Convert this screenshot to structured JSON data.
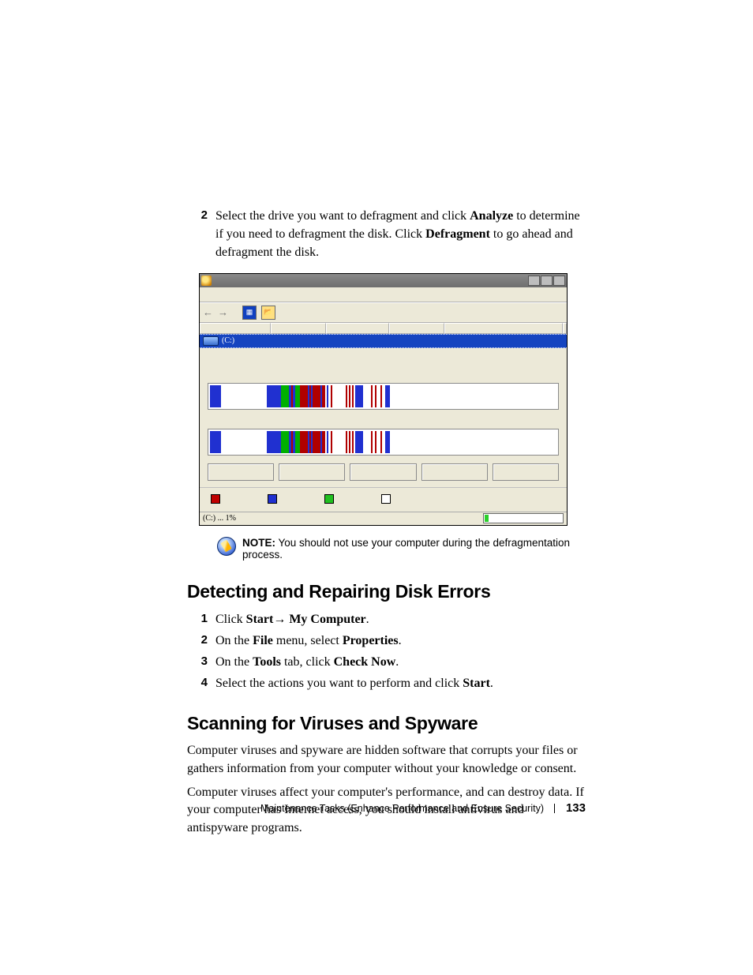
{
  "step2": {
    "num": "2",
    "text_pre": "Select the drive you want to defragment and click ",
    "bold1": "Analyze",
    "text_mid1": " to determine if you need to defragment the disk. Click ",
    "bold2": "Defragment",
    "text_tail": " to go ahead and defragment the disk."
  },
  "window": {
    "drive_label": "(C:)",
    "status_text": "(C:) ... 1%",
    "header_widths": [
      90,
      70,
      80,
      70,
      150
    ],
    "legend": [
      {
        "color": "#c00000"
      },
      {
        "color": "#2030d0"
      },
      {
        "color": "#20c020"
      },
      {
        "color": "#ffffff"
      }
    ],
    "bands": [
      [
        {
          "l": 2,
          "w": 14,
          "c": "#2030d0"
        },
        {
          "l": 74,
          "w": 18,
          "c": "#2030d0"
        },
        {
          "l": 92,
          "w": 10,
          "c": "#00b000"
        },
        {
          "l": 102,
          "w": 3,
          "c": "#2030d0"
        },
        {
          "l": 105,
          "w": 2,
          "c": "#b00000"
        },
        {
          "l": 107,
          "w": 3,
          "c": "#2030d0"
        },
        {
          "l": 110,
          "w": 6,
          "c": "#00b000"
        },
        {
          "l": 116,
          "w": 10,
          "c": "#b00000"
        },
        {
          "l": 126,
          "w": 2,
          "c": "#2030d0"
        },
        {
          "l": 128,
          "w": 2,
          "c": "#b00000"
        },
        {
          "l": 130,
          "w": 2,
          "c": "#2030d0"
        },
        {
          "l": 132,
          "w": 10,
          "c": "#b00000"
        },
        {
          "l": 142,
          "w": 2,
          "c": "#2030d0"
        },
        {
          "l": 144,
          "w": 4,
          "c": "#b00000"
        },
        {
          "l": 150,
          "w": 2,
          "c": "#2030d0"
        },
        {
          "l": 155,
          "w": 2,
          "c": "#b00000"
        },
        {
          "l": 174,
          "w": 2,
          "c": "#b00000"
        },
        {
          "l": 178,
          "w": 2,
          "c": "#b00000"
        },
        {
          "l": 182,
          "w": 2,
          "c": "#b00000"
        },
        {
          "l": 186,
          "w": 10,
          "c": "#2030d0"
        },
        {
          "l": 206,
          "w": 2,
          "c": "#b00000"
        },
        {
          "l": 211,
          "w": 2,
          "c": "#b00000"
        },
        {
          "l": 218,
          "w": 2,
          "c": "#b00000"
        },
        {
          "l": 224,
          "w": 6,
          "c": "#2030d0"
        }
      ],
      [
        {
          "l": 2,
          "w": 14,
          "c": "#2030d0"
        },
        {
          "l": 74,
          "w": 18,
          "c": "#2030d0"
        },
        {
          "l": 92,
          "w": 10,
          "c": "#00b000"
        },
        {
          "l": 102,
          "w": 3,
          "c": "#2030d0"
        },
        {
          "l": 105,
          "w": 2,
          "c": "#b00000"
        },
        {
          "l": 107,
          "w": 3,
          "c": "#2030d0"
        },
        {
          "l": 110,
          "w": 6,
          "c": "#00b000"
        },
        {
          "l": 116,
          "w": 10,
          "c": "#b00000"
        },
        {
          "l": 126,
          "w": 2,
          "c": "#2030d0"
        },
        {
          "l": 128,
          "w": 2,
          "c": "#b00000"
        },
        {
          "l": 130,
          "w": 2,
          "c": "#2030d0"
        },
        {
          "l": 132,
          "w": 10,
          "c": "#b00000"
        },
        {
          "l": 142,
          "w": 2,
          "c": "#2030d0"
        },
        {
          "l": 144,
          "w": 4,
          "c": "#b00000"
        },
        {
          "l": 150,
          "w": 2,
          "c": "#2030d0"
        },
        {
          "l": 155,
          "w": 2,
          "c": "#b00000"
        },
        {
          "l": 174,
          "w": 2,
          "c": "#b00000"
        },
        {
          "l": 178,
          "w": 2,
          "c": "#b00000"
        },
        {
          "l": 182,
          "w": 2,
          "c": "#b00000"
        },
        {
          "l": 186,
          "w": 10,
          "c": "#2030d0"
        },
        {
          "l": 206,
          "w": 2,
          "c": "#b00000"
        },
        {
          "l": 211,
          "w": 2,
          "c": "#b00000"
        },
        {
          "l": 218,
          "w": 2,
          "c": "#b00000"
        },
        {
          "l": 224,
          "w": 6,
          "c": "#2030d0"
        }
      ]
    ]
  },
  "note": {
    "label": "NOTE:",
    "text": " You should not use your computer during the defragmentation process."
  },
  "heading1": "Detecting and Repairing Disk Errors",
  "steps_disk": [
    {
      "num": "1",
      "pre": "Click ",
      "b1": "Start",
      "arrow": "→ ",
      "b2": "My Computer",
      "tail": "."
    },
    {
      "num": "2",
      "pre": "On the ",
      "b1": "File",
      "mid": " menu, select ",
      "b2": "Properties",
      "tail": "."
    },
    {
      "num": "3",
      "pre": "On the ",
      "b1": "Tools",
      "mid": " tab, click ",
      "b2": "Check Now",
      "tail": "."
    },
    {
      "num": "4",
      "pre": "Select the actions you want to perform and click ",
      "b1": "Start",
      "tail": "."
    }
  ],
  "heading2": "Scanning for Viruses and Spyware",
  "para1": "Computer viruses and spyware are hidden software that corrupts your files or gathers information from your computer without your knowledge or consent.",
  "para2": "Computer viruses affect your computer's performance, and can destroy data. If your computer has Internet access, you should install antivirus and antispyware programs.",
  "footer": {
    "title": "Maintenance Tasks (Enhance Performance and Ensure Security)",
    "page": "133"
  }
}
